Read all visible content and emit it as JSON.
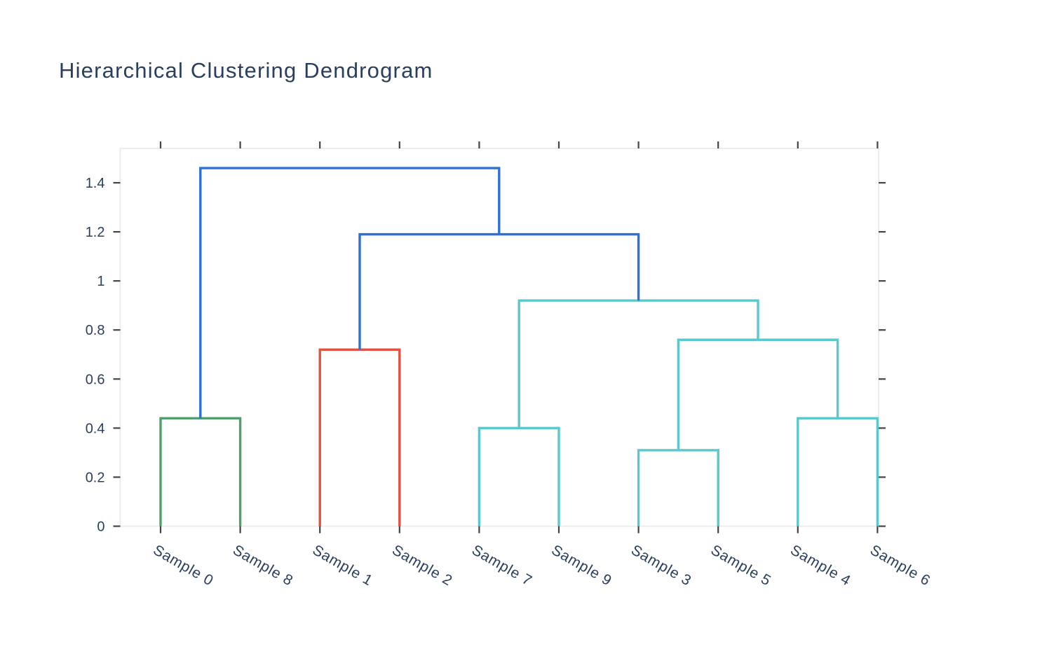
{
  "title": {
    "text": "Hierarchical Clustering Dendrogram",
    "color": "#2a3f5f"
  },
  "chart_data": {
    "type": "dendrogram",
    "title": "Hierarchical Clustering Dendrogram",
    "orientation": "bottom",
    "grid": false,
    "legend": false,
    "leaves": [
      "Sample 0",
      "Sample 8",
      "Sample 1",
      "Sample 2",
      "Sample 7",
      "Sample 9",
      "Sample 3",
      "Sample 5",
      "Sample 4",
      "Sample 6"
    ],
    "x_tick_angle_deg": 30,
    "y_axis": {
      "ticks": [
        "0",
        "0.2",
        "0.4",
        "0.6",
        "0.8",
        "1",
        "1.2",
        "1.4"
      ],
      "tick_values": [
        0,
        0.2,
        0.4,
        0.6,
        0.8,
        1.0,
        1.2,
        1.4
      ],
      "range": [
        0,
        1.54
      ]
    },
    "link_colors": {
      "above_threshold": "#3070D2",
      "cluster_green": "#549E6C",
      "cluster_red": "#E35140",
      "cluster_cyan": "#5AC8CC"
    },
    "merges": [
      {
        "id": "M0",
        "left": "Sample 3",
        "right": "Sample 5",
        "height": 0.31,
        "color": "cluster_cyan"
      },
      {
        "id": "M1",
        "left": "Sample 7",
        "right": "Sample 9",
        "height": 0.4,
        "color": "cluster_cyan"
      },
      {
        "id": "M2",
        "left": "Sample 4",
        "right": "Sample 6",
        "height": 0.44,
        "color": "cluster_cyan"
      },
      {
        "id": "M3",
        "left": "M0",
        "right": "M2",
        "height": 0.76,
        "color": "cluster_cyan"
      },
      {
        "id": "M4",
        "left": "M1",
        "right": "M3",
        "height": 0.92,
        "color": "cluster_cyan"
      },
      {
        "id": "M5",
        "left": "Sample 0",
        "right": "Sample 8",
        "height": 0.44,
        "color": "cluster_green"
      },
      {
        "id": "M6",
        "left": "Sample 1",
        "right": "Sample 2",
        "height": 0.72,
        "color": "cluster_red"
      },
      {
        "id": "M7",
        "left": "M6",
        "right": "M4",
        "height": 1.19,
        "color": "above_threshold"
      },
      {
        "id": "M8",
        "left": "M5",
        "right": "M7",
        "height": 1.46,
        "color": "above_threshold"
      }
    ],
    "axis_style": {
      "text_color": "#2a3f5f",
      "tick_color": "#444444",
      "spine_color": "#E8EDF2"
    }
  }
}
